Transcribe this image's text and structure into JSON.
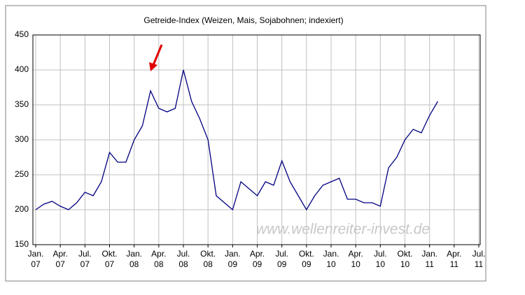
{
  "chart_data": {
    "type": "line",
    "title": "Getreide-Index (Weizen, Mais, Sojabohnen; indexiert)",
    "watermark": "www.wellenreiter-invest.de",
    "x": [
      "2007-01",
      "2007-02",
      "2007-03",
      "2007-04",
      "2007-05",
      "2007-06",
      "2007-07",
      "2007-08",
      "2007-09",
      "2007-10",
      "2007-11",
      "2007-12",
      "2008-01",
      "2008-02",
      "2008-03",
      "2008-04",
      "2008-05",
      "2008-06",
      "2008-07",
      "2008-08",
      "2008-09",
      "2008-10",
      "2008-11",
      "2008-12",
      "2009-01",
      "2009-02",
      "2009-03",
      "2009-04",
      "2009-05",
      "2009-06",
      "2009-07",
      "2009-08",
      "2009-09",
      "2009-10",
      "2009-11",
      "2009-12",
      "2010-01",
      "2010-02",
      "2010-03",
      "2010-04",
      "2010-05",
      "2010-06",
      "2010-07",
      "2010-08",
      "2010-09",
      "2010-10",
      "2010-11",
      "2010-12",
      "2011-01",
      "2011-02"
    ],
    "series": [
      {
        "color": "#000080",
        "values": [
          200,
          208,
          212,
          205,
          200,
          210,
          225,
          220,
          240,
          282,
          268,
          268,
          300,
          320,
          370,
          345,
          340,
          345,
          400,
          355,
          330,
          300,
          220,
          210,
          200,
          240,
          230,
          220,
          240,
          235,
          270,
          240,
          220,
          200,
          220,
          235,
          240,
          245,
          215,
          215,
          210,
          210,
          205,
          260,
          275,
          300,
          315,
          310,
          335,
          355
        ]
      }
    ],
    "xlim": [
      "2007-01",
      "2011-07"
    ],
    "xticks": [
      {
        "value": "2007-01",
        "label": [
          "Jan.",
          "07"
        ]
      },
      {
        "value": "2007-04",
        "label": [
          "Apr.",
          "07"
        ]
      },
      {
        "value": "2007-07",
        "label": [
          "Jul.",
          "07"
        ]
      },
      {
        "value": "2007-10",
        "label": [
          "Okt.",
          "07"
        ]
      },
      {
        "value": "2008-01",
        "label": [
          "Jan.",
          "08"
        ]
      },
      {
        "value": "2008-04",
        "label": [
          "Apr.",
          "08"
        ]
      },
      {
        "value": "2008-07",
        "label": [
          "Jul.",
          "08"
        ]
      },
      {
        "value": "2008-10",
        "label": [
          "Okt.",
          "08"
        ]
      },
      {
        "value": "2009-01",
        "label": [
          "Jan.",
          "09"
        ]
      },
      {
        "value": "2009-04",
        "label": [
          "Apr.",
          "09"
        ]
      },
      {
        "value": "2009-07",
        "label": [
          "Jul.",
          "09"
        ]
      },
      {
        "value": "2009-10",
        "label": [
          "Okt.",
          "09"
        ]
      },
      {
        "value": "2010-01",
        "label": [
          "Jan.",
          "10"
        ]
      },
      {
        "value": "2010-04",
        "label": [
          "Apr.",
          "10"
        ]
      },
      {
        "value": "2010-07",
        "label": [
          "Jul.",
          "10"
        ]
      },
      {
        "value": "2010-10",
        "label": [
          "Okt.",
          "10"
        ]
      },
      {
        "value": "2011-01",
        "label": [
          "Jan.",
          "11"
        ]
      },
      {
        "value": "2011-04",
        "label": [
          "Apr.",
          "11"
        ]
      },
      {
        "value": "2011-07",
        "label": [
          "Jul.",
          "11"
        ]
      }
    ],
    "ylim": [
      150,
      450
    ],
    "yticks": [
      150,
      200,
      250,
      300,
      350,
      400,
      450
    ],
    "grid": true
  }
}
